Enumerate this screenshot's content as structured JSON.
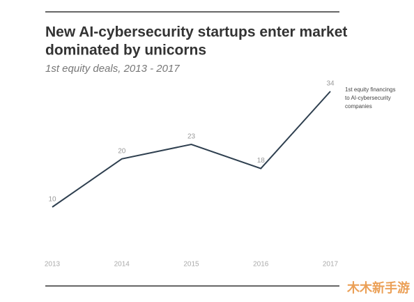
{
  "chart_data": {
    "type": "line",
    "title": [
      "New AI-cybersecurity startups enter market",
      "dominated by unicorns"
    ],
    "subtitle": "1st equity deals, 2013 - 2017",
    "categories": [
      "2013",
      "2014",
      "2015",
      "2016",
      "2017"
    ],
    "values": [
      10,
      20,
      23,
      18,
      34
    ],
    "color": "#2e3f4f",
    "ylim": [
      0,
      34
    ],
    "annotation": [
      "1st equity financings",
      "to  AI-cybersecurity",
      "companies"
    ],
    "watermark": "木木新手游"
  }
}
